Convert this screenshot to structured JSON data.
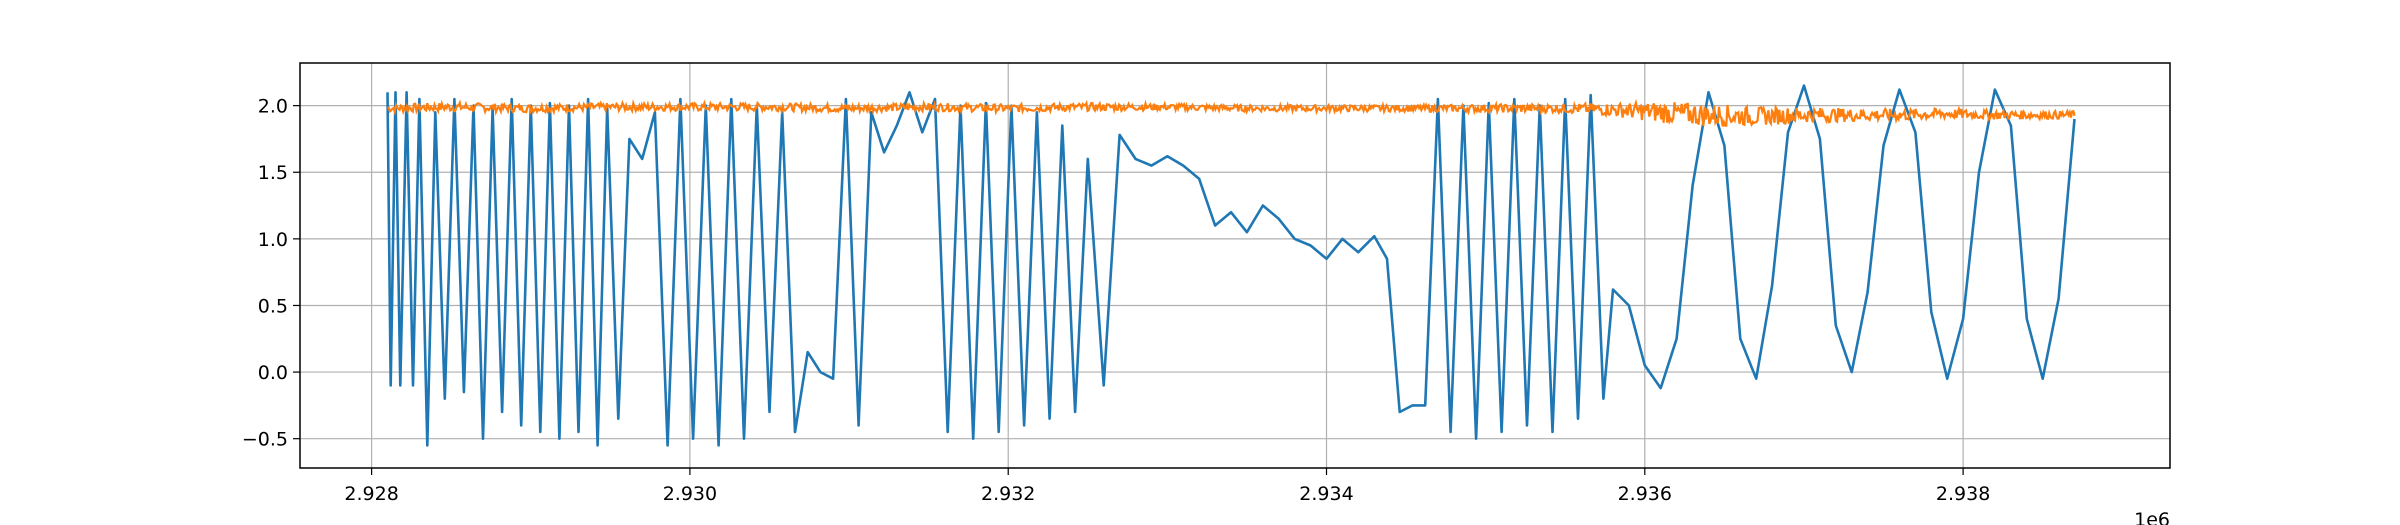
{
  "chart_data": {
    "type": "line",
    "title": "",
    "xlabel": "",
    "ylabel": "",
    "x_offset_label": "1e6",
    "xlim": [
      2.92755,
      2.9393
    ],
    "ylim": [
      -0.72,
      2.32
    ],
    "grid": true,
    "x_ticks": [
      {
        "value": 2.928,
        "label": "2.928"
      },
      {
        "value": 2.93,
        "label": "2.930"
      },
      {
        "value": 2.932,
        "label": "2.932"
      },
      {
        "value": 2.934,
        "label": "2.934"
      },
      {
        "value": 2.936,
        "label": "2.936"
      },
      {
        "value": 2.938,
        "label": "2.938"
      }
    ],
    "y_ticks": [
      {
        "value": -0.5,
        "label": "−0.5"
      },
      {
        "value": 0.0,
        "label": "0.0"
      },
      {
        "value": 0.5,
        "label": "0.5"
      },
      {
        "value": 1.0,
        "label": "1.0"
      },
      {
        "value": 1.5,
        "label": "1.5"
      },
      {
        "value": 2.0,
        "label": "2.0"
      }
    ],
    "series": [
      {
        "color": "#1f77b4",
        "x": [
          2.9281,
          2.92812,
          2.92815,
          2.92818,
          2.92822,
          2.92826,
          2.9283,
          2.92835,
          2.9284,
          2.92846,
          2.92852,
          2.92858,
          2.92864,
          2.9287,
          2.92876,
          2.92882,
          2.92888,
          2.92894,
          2.929,
          2.92906,
          2.92912,
          2.92918,
          2.92924,
          2.9293,
          2.92936,
          2.92942,
          2.92948,
          2.92955,
          2.92962,
          2.9297,
          2.92978,
          2.92986,
          2.92994,
          2.93002,
          2.9301,
          2.93018,
          2.93026,
          2.93034,
          2.93042,
          2.9305,
          2.93058,
          2.93066,
          2.93074,
          2.93082,
          2.9309,
          2.93098,
          2.93106,
          2.93114,
          2.93122,
          2.9313,
          2.93138,
          2.93146,
          2.93154,
          2.93162,
          2.9317,
          2.93178,
          2.93186,
          2.93194,
          2.93202,
          2.9321,
          2.93218,
          2.93226,
          2.93234,
          2.93242,
          2.9325,
          2.9326,
          2.9327,
          2.9328,
          2.9329,
          2.933,
          2.9331,
          2.9332,
          2.9333,
          2.9334,
          2.9335,
          2.9336,
          2.9337,
          2.9338,
          2.9339,
          2.934,
          2.9341,
          2.9342,
          2.9343,
          2.93438,
          2.93446,
          2.93454,
          2.93462,
          2.9347,
          2.93478,
          2.93486,
          2.93494,
          2.93502,
          2.9351,
          2.93518,
          2.93526,
          2.93534,
          2.93542,
          2.9355,
          2.93558,
          2.93566,
          2.93574,
          2.9358,
          2.9359,
          2.936,
          2.9361,
          2.9362,
          2.9363,
          2.9364,
          2.9365,
          2.9366,
          2.9367,
          2.9368,
          2.9369,
          2.937,
          2.9371,
          2.9372,
          2.9373,
          2.9374,
          2.9375,
          2.9376,
          2.9377,
          2.9378,
          2.9379,
          2.938,
          2.9381,
          2.9382,
          2.9383,
          2.9384,
          2.9385,
          2.9386,
          2.9387
        ],
        "y": [
          2.1,
          -0.1,
          2.1,
          -0.1,
          2.1,
          -0.1,
          2.05,
          -0.55,
          1.95,
          -0.2,
          2.05,
          -0.15,
          2.0,
          -0.5,
          1.98,
          -0.3,
          2.05,
          -0.4,
          2.0,
          -0.45,
          2.02,
          -0.5,
          2.0,
          -0.45,
          2.05,
          -0.55,
          1.98,
          -0.35,
          1.75,
          1.6,
          1.95,
          -0.55,
          2.05,
          -0.5,
          2.0,
          -0.55,
          2.05,
          -0.5,
          2.0,
          -0.3,
          1.95,
          -0.45,
          0.15,
          0.0,
          -0.05,
          2.05,
          -0.4,
          1.95,
          1.65,
          1.85,
          2.1,
          1.8,
          2.05,
          -0.45,
          2.0,
          -0.5,
          2.02,
          -0.45,
          2.0,
          -0.4,
          1.95,
          -0.35,
          1.85,
          -0.3,
          1.6,
          -0.1,
          1.78,
          1.6,
          1.55,
          1.62,
          1.55,
          1.45,
          1.1,
          1.2,
          1.05,
          1.25,
          1.15,
          1.0,
          0.95,
          0.85,
          1.0,
          0.9,
          1.02,
          0.85,
          -0.3,
          -0.25,
          -0.25,
          2.05,
          -0.45,
          2.0,
          -0.5,
          2.02,
          -0.45,
          2.05,
          -0.4,
          2.0,
          -0.45,
          2.05,
          -0.35,
          2.08,
          -0.2,
          0.62,
          0.5,
          0.05,
          -0.12,
          0.25,
          1.4,
          2.1,
          1.7,
          0.25,
          -0.05,
          0.65,
          1.8,
          2.15,
          1.75,
          0.35,
          0.0,
          0.6,
          1.7,
          2.12,
          1.8,
          0.45,
          -0.05,
          0.4,
          1.5,
          2.12,
          1.85,
          0.4,
          -0.05,
          0.55,
          1.9
        ]
      },
      {
        "color": "#ff7f0e",
        "x": [
          2.9281,
          2.9285,
          2.929,
          2.9295,
          2.93,
          2.9305,
          2.931,
          2.9315,
          2.932,
          2.9325,
          2.933,
          2.9335,
          2.934,
          2.9345,
          2.935,
          2.9355,
          2.9358,
          2.9361,
          2.9364,
          2.9367,
          2.937,
          2.9373,
          2.9376,
          2.9379,
          2.9382,
          2.9385,
          2.9387
        ],
        "y": [
          1.98,
          1.99,
          1.98,
          1.99,
          1.99,
          1.99,
          1.98,
          1.99,
          1.98,
          1.99,
          1.99,
          1.98,
          1.98,
          1.98,
          1.98,
          1.98,
          1.97,
          1.95,
          1.93,
          1.92,
          1.93,
          1.93,
          1.93,
          1.94,
          1.93,
          1.93,
          1.93
        ],
        "noise": [
          0.03,
          0.035,
          0.03,
          0.03,
          0.03,
          0.03,
          0.03,
          0.03,
          0.03,
          0.03,
          0.025,
          0.025,
          0.025,
          0.025,
          0.03,
          0.035,
          0.05,
          0.08,
          0.09,
          0.07,
          0.06,
          0.05,
          0.045,
          0.04,
          0.035,
          0.03,
          0.03
        ]
      }
    ]
  }
}
